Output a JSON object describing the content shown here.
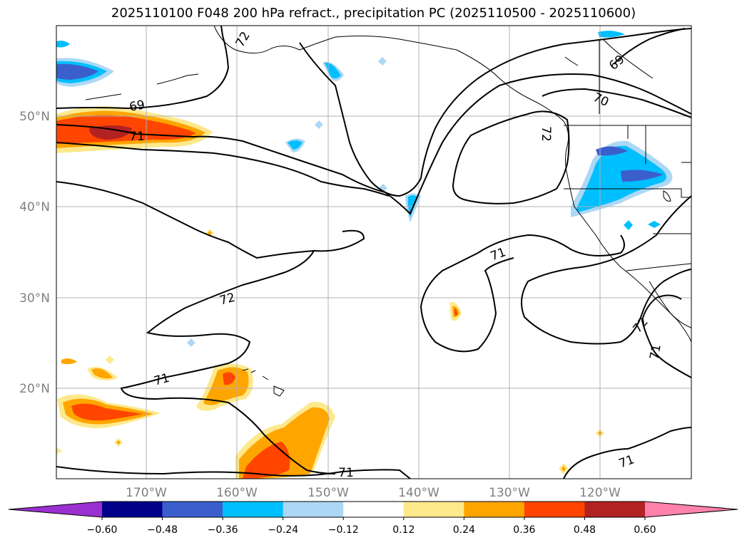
{
  "title": "2025110100 F048 200 hPa refract., precipitation PC (2025110500 - 2025110600)",
  "map": {
    "lat_labels": [
      "50°N",
      "40°N",
      "30°N",
      "20°N"
    ],
    "lon_labels": [
      "170°W",
      "160°W",
      "150°W",
      "140°W",
      "130°W",
      "120°W"
    ],
    "contour_labels": [
      "69",
      "71",
      "72",
      "71",
      "72",
      "71",
      "70",
      "69",
      "72",
      "71",
      "72",
      "71",
      "71",
      "71"
    ]
  },
  "colorbar": {
    "ticks": [
      "−0.60",
      "−0.48",
      "−0.36",
      "−0.24",
      "−0.12",
      "0.12",
      "0.24",
      "0.36",
      "0.48",
      "0.60"
    ],
    "colors": [
      "#9b30d0",
      "#00008b",
      "#3a5fcd",
      "#00bfff",
      "#add8f5",
      "#ffffff",
      "#fde98c",
      "#ffa500",
      "#ff4500",
      "#b22222",
      "#ff82ab"
    ]
  }
}
